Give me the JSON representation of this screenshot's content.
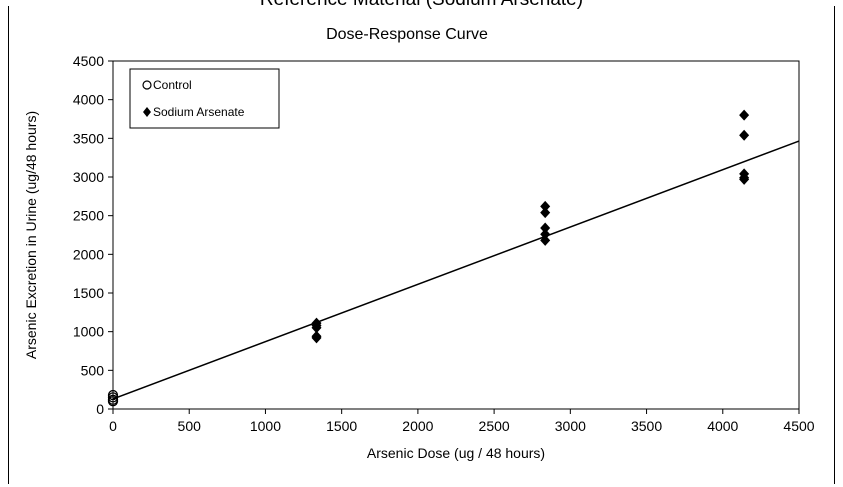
{
  "header": {
    "cut_title": "Reference Material (Sodium Arsenate)"
  },
  "chart_data": {
    "type": "scatter",
    "title": "Dose-Response Curve",
    "xlabel": "Arsenic Dose (ug / 48 hours)",
    "ylabel": "Arsenic Excretion in Urine (ug/48 hours)",
    "xlim": [
      0,
      4500
    ],
    "ylim": [
      0,
      4500
    ],
    "x_ticks": [
      0,
      500,
      1000,
      1500,
      2000,
      2500,
      3000,
      3500,
      4000,
      4500
    ],
    "y_ticks": [
      0,
      500,
      1000,
      1500,
      2000,
      2500,
      3000,
      3500,
      4000,
      4500
    ],
    "legend_position": "top-left",
    "grid": false,
    "series": [
      {
        "name": "Control",
        "marker": "open-circle",
        "color": "#000000",
        "points": [
          [
            0,
            180
          ],
          [
            0,
            150
          ],
          [
            0,
            120
          ],
          [
            0,
            100
          ]
        ]
      },
      {
        "name": "Sodium Arsenate",
        "marker": "filled-diamond",
        "color": "#000000",
        "points": [
          [
            1335,
            1110
          ],
          [
            1335,
            1080
          ],
          [
            1335,
            1050
          ],
          [
            1335,
            940
          ],
          [
            1335,
            920
          ],
          [
            2835,
            2620
          ],
          [
            2835,
            2540
          ],
          [
            2835,
            2340
          ],
          [
            2835,
            2260
          ],
          [
            2835,
            2180
          ],
          [
            4140,
            3800
          ],
          [
            4140,
            3540
          ],
          [
            4140,
            3040
          ],
          [
            4140,
            2990
          ],
          [
            4140,
            2970
          ]
        ]
      }
    ],
    "trendline": {
      "x": [
        0,
        4500
      ],
      "y": [
        130,
        3465
      ],
      "color": "#000000"
    }
  }
}
